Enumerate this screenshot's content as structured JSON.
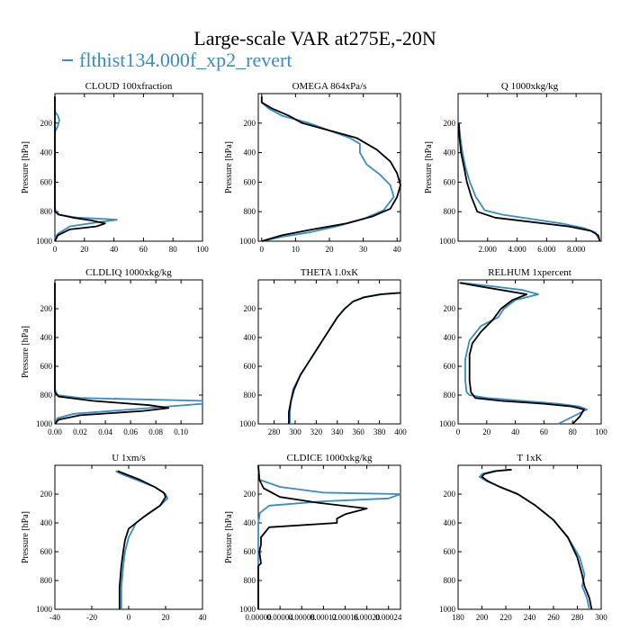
{
  "figure": {
    "title": "Large-scale VAR at275E,-20N",
    "legend_label": "flthist134.000f_xp2_revert",
    "series_colors": {
      "blue": "#3a8bbf",
      "black": "#000000"
    }
  },
  "chart_data": [
    {
      "type": "line",
      "title": "CLOUD  100xfraction",
      "ylabel": "Pressure [hPa]",
      "xlim": [
        0,
        100
      ],
      "ylim": [
        1000,
        0
      ],
      "xticks": [
        0,
        20,
        40,
        60,
        80,
        100
      ],
      "xtick_labels": [
        "0",
        "20",
        "40",
        "60",
        "80",
        "100"
      ],
      "yticks": [
        200,
        400,
        600,
        800,
        1000
      ],
      "ytick_labels": [
        "200",
        "400",
        "600",
        "800",
        "1000"
      ],
      "series": [
        {
          "color": "#3a8bbf",
          "x": [
            0,
            0,
            2,
            3,
            2,
            0,
            0,
            0,
            0,
            2,
            15,
            35,
            42,
            30,
            10,
            2,
            0,
            0
          ],
          "y": [
            20,
            120,
            150,
            180,
            220,
            260,
            400,
            600,
            780,
            820,
            840,
            850,
            855,
            870,
            900,
            950,
            980,
            1000
          ]
        },
        {
          "color": "#000000",
          "x": [
            0,
            0,
            0,
            0,
            0,
            0,
            3,
            12,
            25,
            34,
            28,
            10,
            2,
            0
          ],
          "y": [
            20,
            150,
            300,
            600,
            780,
            800,
            820,
            840,
            860,
            880,
            900,
            920,
            960,
            1000
          ]
        }
      ]
    },
    {
      "type": "line",
      "title": "OMEGA  864xPa/s",
      "ylabel": "Pressure [hPa]",
      "xlim": [
        -1,
        41
      ],
      "ylim": [
        1000,
        0
      ],
      "xticks": [
        0,
        10,
        20,
        30,
        40
      ],
      "xtick_labels": [
        "0",
        "10",
        "20",
        "30",
        "40"
      ],
      "yticks": [
        200,
        400,
        600,
        800,
        1000
      ],
      "ytick_labels": [
        "200",
        "400",
        "600",
        "800",
        "1000"
      ],
      "series": [
        {
          "color": "#3a8bbf",
          "x": [
            0,
            0,
            2,
            6,
            14,
            20,
            26,
            29,
            29,
            31,
            35,
            38,
            39,
            36,
            30,
            22,
            14,
            6,
            0
          ],
          "y": [
            20,
            60,
            100,
            150,
            200,
            250,
            300,
            340,
            400,
            480,
            550,
            620,
            700,
            790,
            850,
            900,
            940,
            970,
            1000
          ]
        },
        {
          "color": "#000000",
          "x": [
            0,
            0,
            3,
            8,
            12,
            20,
            28,
            34,
            38,
            40,
            41,
            40,
            38,
            33,
            25,
            15,
            6,
            0
          ],
          "y": [
            20,
            60,
            100,
            150,
            200,
            250,
            300,
            380,
            460,
            540,
            620,
            700,
            780,
            830,
            880,
            920,
            960,
            1000
          ]
        }
      ]
    },
    {
      "type": "line",
      "title": "Q  1000xkg/kg",
      "ylabel": "Pressure [hPa]",
      "xlim": [
        0,
        9.7
      ],
      "ylim": [
        1000,
        0
      ],
      "xticks": [
        2,
        4,
        6,
        8
      ],
      "xtick_labels": [
        "2.000",
        "4.000",
        "6.000",
        "8.000"
      ],
      "yticks": [
        200,
        400,
        600,
        800,
        1000
      ],
      "ytick_labels": [
        "200",
        "400",
        "600",
        "800",
        "1000"
      ],
      "series": [
        {
          "color": "#3a8bbf",
          "x": [
            0.05,
            0.15,
            0.3,
            0.5,
            0.8,
            1.2,
            1.8,
            3,
            5,
            7,
            8.5,
            9.3,
            9.5
          ],
          "y": [
            200,
            300,
            400,
            500,
            600,
            700,
            790,
            820,
            850,
            880,
            910,
            940,
            980
          ]
        },
        {
          "color": "#000000",
          "x": [
            0.05,
            0.1,
            0.2,
            0.4,
            0.6,
            0.9,
            1.3,
            2.5,
            5,
            7.5,
            9,
            9.5,
            9.6
          ],
          "y": [
            200,
            300,
            400,
            500,
            600,
            700,
            800,
            840,
            870,
            900,
            930,
            960,
            1000
          ]
        }
      ]
    },
    {
      "type": "line",
      "title": "CLDLIQ  1000xkg/kg",
      "ylabel": "Pressure [hPa]",
      "xlim": [
        0,
        0.117
      ],
      "ylim": [
        1000,
        0
      ],
      "xticks": [
        0,
        0.02,
        0.04,
        0.06,
        0.08,
        0.1
      ],
      "xtick_labels": [
        "0.00",
        "0.02",
        "0.04",
        "0.06",
        "0.08",
        "0.10"
      ],
      "yticks": [
        200,
        400,
        600,
        800,
        1000
      ],
      "ytick_labels": [
        "200",
        "400",
        "600",
        "800",
        "1000"
      ],
      "series": [
        {
          "color": "#3a8bbf",
          "x": [
            0,
            0,
            0.002,
            0.02,
            0.07,
            0.117,
            0.117,
            0.06,
            0.015,
            0.002,
            0
          ],
          "y": [
            20,
            760,
            800,
            820,
            830,
            840,
            860,
            900,
            930,
            960,
            1000
          ]
        },
        {
          "color": "#000000",
          "x": [
            0,
            0,
            0.003,
            0.03,
            0.075,
            0.09,
            0.07,
            0.02,
            0.003,
            0
          ],
          "y": [
            20,
            780,
            810,
            840,
            870,
            890,
            910,
            940,
            970,
            1000
          ]
        }
      ]
    },
    {
      "type": "line",
      "title": "THETA  1.0xK",
      "ylabel": "",
      "xlim": [
        265,
        400
      ],
      "ylim": [
        1000,
        0
      ],
      "xticks": [
        280,
        300,
        320,
        340,
        360,
        380,
        400
      ],
      "xtick_labels": [
        "280",
        "300",
        "320",
        "340",
        "360",
        "380",
        "400"
      ],
      "yticks": [
        200,
        400,
        600,
        800,
        1000
      ],
      "ytick_labels": [
        "200",
        "400",
        "600",
        "800",
        "1000"
      ],
      "series": [
        {
          "color": "#3a8bbf",
          "x": [
            398,
            380,
            365,
            355,
            347,
            340,
            333,
            326,
            319,
            312,
            305,
            298,
            296,
            295,
            295
          ],
          "y": [
            90,
            100,
            120,
            150,
            200,
            260,
            340,
            420,
            500,
            580,
            660,
            760,
            840,
            920,
            1000
          ]
        },
        {
          "color": "#000000",
          "x": [
            400,
            382,
            366,
            355,
            347,
            340,
            333,
            326,
            319,
            312,
            305,
            299,
            296,
            294,
            294
          ],
          "y": [
            90,
            100,
            120,
            150,
            200,
            260,
            340,
            420,
            500,
            580,
            660,
            760,
            840,
            920,
            1000
          ]
        }
      ]
    },
    {
      "type": "line",
      "title": "RELHUM  1xpercent",
      "ylabel": "",
      "xlim": [
        0,
        100
      ],
      "ylim": [
        1000,
        0
      ],
      "xticks": [
        0,
        20,
        40,
        60,
        80,
        100
      ],
      "xtick_labels": [
        "0",
        "20",
        "40",
        "60",
        "80",
        "100"
      ],
      "yticks": [
        200,
        400,
        600,
        800,
        1000
      ],
      "ytick_labels": [
        "200",
        "400",
        "600",
        "800",
        "1000"
      ],
      "series": [
        {
          "color": "#3a8bbf",
          "x": [
            2,
            20,
            45,
            56,
            40,
            32,
            28,
            16,
            8,
            5,
            5,
            6,
            8,
            20,
            45,
            70,
            85,
            90,
            80,
            70
          ],
          "y": [
            20,
            40,
            70,
            100,
            140,
            200,
            260,
            320,
            420,
            550,
            700,
            780,
            800,
            820,
            840,
            860,
            880,
            900,
            950,
            1000
          ]
        },
        {
          "color": "#000000",
          "x": [
            1,
            12,
            30,
            48,
            38,
            30,
            24,
            16,
            10,
            8,
            8,
            9,
            12,
            30,
            60,
            80,
            88,
            85,
            80
          ],
          "y": [
            20,
            40,
            70,
            100,
            140,
            200,
            280,
            360,
            440,
            520,
            700,
            780,
            820,
            840,
            860,
            880,
            900,
            950,
            1000
          ]
        }
      ]
    },
    {
      "type": "line",
      "title": "U  1xm/s",
      "ylabel": "Pressure [hPa]",
      "xlim": [
        -40,
        40
      ],
      "ylim": [
        1000,
        0
      ],
      "xticks": [
        -40,
        -20,
        0,
        20,
        40
      ],
      "xtick_labels": [
        "-40",
        "-20",
        "0",
        "20",
        "40"
      ],
      "yticks": [
        200,
        400,
        600,
        800,
        1000
      ],
      "ytick_labels": [
        "200",
        "400",
        "600",
        "800",
        "1000"
      ],
      "series": [
        {
          "color": "#3a8bbf",
          "x": [
            -7,
            -4,
            4,
            14,
            20,
            21,
            17,
            10,
            4,
            0,
            -2,
            -3,
            -4,
            -4
          ],
          "y": [
            40,
            60,
            100,
            150,
            200,
            230,
            280,
            340,
            400,
            500,
            600,
            700,
            850,
            1000
          ]
        },
        {
          "color": "#000000",
          "x": [
            -6,
            -2,
            6,
            14,
            19,
            20,
            17,
            8,
            0,
            -2,
            -3,
            -4,
            -5,
            -5
          ],
          "y": [
            40,
            60,
            100,
            150,
            190,
            220,
            280,
            360,
            440,
            520,
            600,
            700,
            850,
            1000
          ]
        }
      ]
    },
    {
      "type": "line",
      "title": "CLDICE  1000xkg/kg",
      "ylabel": "Pressure [hPa]",
      "xlim": [
        0,
        0.000262
      ],
      "ylim": [
        1000,
        0
      ],
      "xticks": [
        0,
        4e-05,
        8e-05,
        0.00012,
        0.00016,
        0.0002,
        0.00024
      ],
      "xtick_labels": [
        "0.00000",
        "0.00004",
        "0.00008",
        "0.00012",
        "0.00016",
        "0.00020",
        "0.00024"
      ],
      "yticks": [
        200,
        400,
        600,
        800,
        1000
      ],
      "ytick_labels": [
        "200",
        "400",
        "600",
        "800",
        "1000"
      ],
      "series": [
        {
          "color": "#3a8bbf",
          "x": [
            0,
            2e-06,
            4e-05,
            0.00012,
            0.000262,
            0.00024,
            0.00012,
            2e-05,
            3e-06,
            0,
            0
          ],
          "y": [
            0,
            100,
            150,
            190,
            200,
            230,
            250,
            280,
            330,
            400,
            1000
          ]
        },
        {
          "color": "#000000",
          "x": [
            0,
            2e-06,
            1e-05,
            4e-05,
            0.00011,
            0.0002,
            0.00016,
            0.000145,
            0.000145,
            2e-05,
            5e-06,
            5e-06,
            2e-06,
            5e-06,
            0,
            0
          ],
          "y": [
            0,
            100,
            160,
            220,
            260,
            300,
            340,
            370,
            400,
            430,
            500,
            550,
            600,
            680,
            700,
            1000
          ]
        }
      ]
    },
    {
      "type": "line",
      "title": "T  1xK",
      "ylabel": "",
      "xlim": [
        180,
        300
      ],
      "ylim": [
        1000,
        0
      ],
      "xticks": [
        180,
        200,
        220,
        240,
        260,
        280,
        300
      ],
      "xtick_labels": [
        "180",
        "200",
        "220",
        "240",
        "260",
        "280",
        "300"
      ],
      "yticks": [
        200,
        400,
        600,
        800,
        1000
      ],
      "ytick_labels": [
        "200",
        "400",
        "600",
        "800",
        "1000"
      ],
      "series": [
        {
          "color": "#3a8bbf",
          "x": [
            224,
            210,
            200,
            198,
            204,
            215,
            230,
            245,
            260,
            272,
            282,
            286,
            284,
            288,
            290
          ],
          "y": [
            30,
            40,
            60,
            80,
            110,
            150,
            200,
            280,
            380,
            500,
            640,
            760,
            840,
            920,
            1000
          ]
        },
        {
          "color": "#000000",
          "x": [
            225,
            212,
            202,
            200,
            205,
            215,
            230,
            245,
            260,
            272,
            280,
            284,
            286,
            290,
            292
          ],
          "y": [
            30,
            40,
            60,
            80,
            110,
            150,
            200,
            280,
            380,
            500,
            640,
            760,
            840,
            920,
            1000
          ]
        }
      ]
    }
  ]
}
